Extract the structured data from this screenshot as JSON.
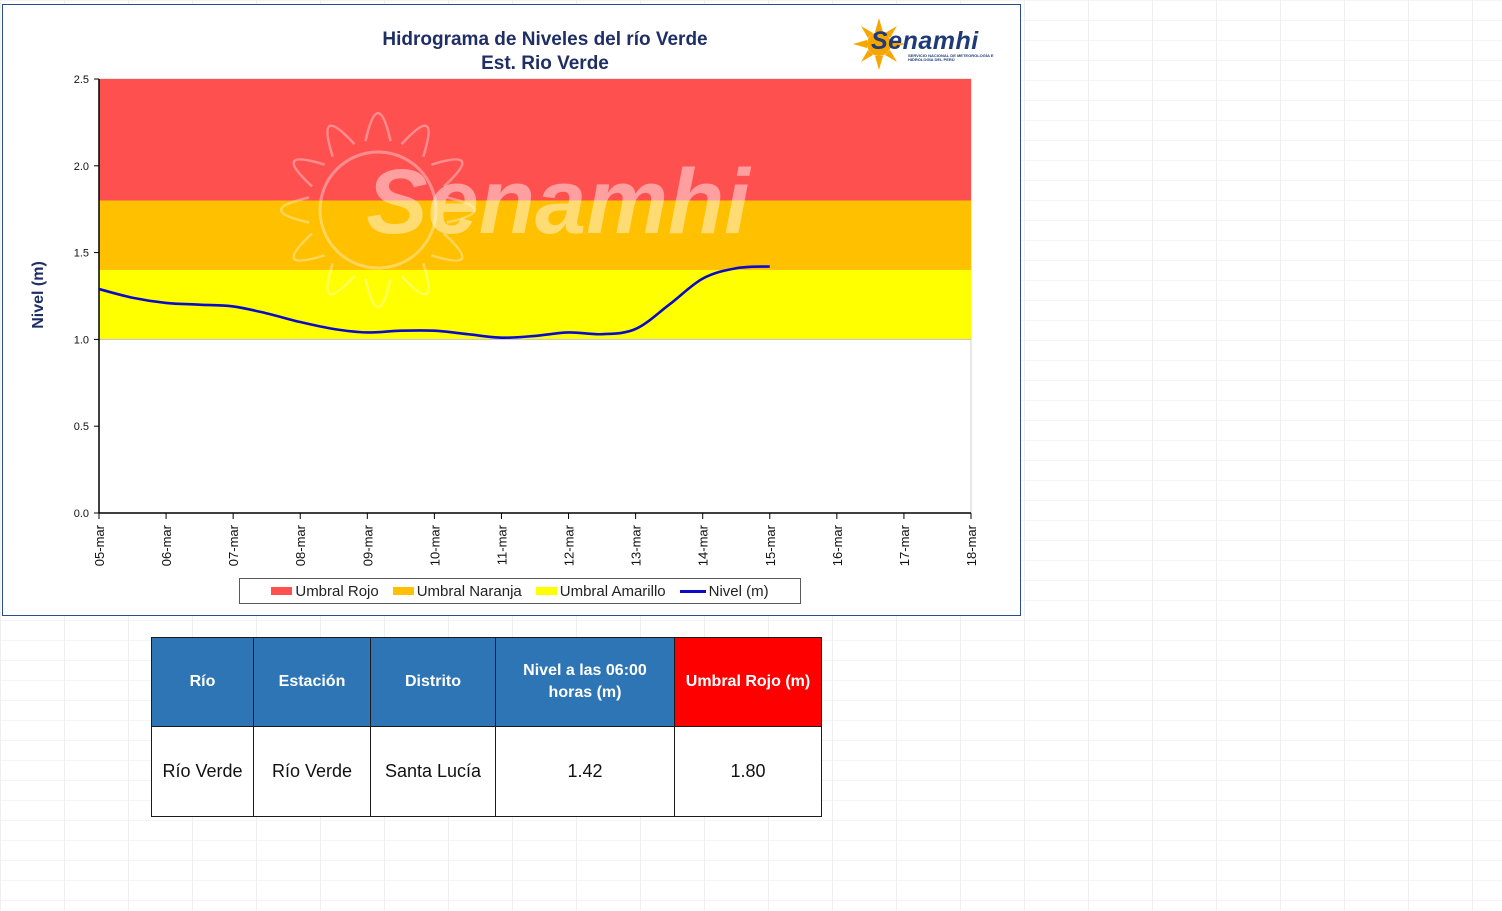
{
  "chart_data": {
    "type": "line",
    "title": "Hidrograma de Niveles del río Verde",
    "subtitle": "Est. Rio Verde",
    "ylabel": "Nivel (m)",
    "xlabel": "",
    "ylim": [
      0,
      2.5
    ],
    "yticks": [
      "0.0",
      "0.5",
      "1.0",
      "1.5",
      "2.0",
      "2.5"
    ],
    "x_labels": [
      "05-mar",
      "06-mar",
      "07-mar",
      "08-mar",
      "09-mar",
      "10-mar",
      "11-mar",
      "12-mar",
      "13-mar",
      "14-mar",
      "15-mar",
      "16-mar",
      "17-mar",
      "18-mar"
    ],
    "bands": [
      {
        "name": "Umbral Rojo",
        "from": 1.8,
        "to": 2.5,
        "color": "#ff5050"
      },
      {
        "name": "Umbral Naranja",
        "from": 1.4,
        "to": 1.8,
        "color": "#ffc000"
      },
      {
        "name": "Umbral Amarillo",
        "from": 1.0,
        "to": 1.4,
        "color": "#ffff00"
      }
    ],
    "series": [
      {
        "name": "Nivel (m)",
        "color": "#0a0ac8",
        "x": [
          0,
          0.5,
          1,
          1.5,
          2,
          2.5,
          3,
          3.5,
          4,
          4.5,
          5,
          5.5,
          6,
          6.5,
          7,
          7.5,
          8,
          8.5,
          9,
          9.5,
          10
        ],
        "values": [
          1.29,
          1.24,
          1.21,
          1.2,
          1.19,
          1.15,
          1.1,
          1.06,
          1.04,
          1.05,
          1.05,
          1.03,
          1.01,
          1.02,
          1.04,
          1.03,
          1.06,
          1.2,
          1.35,
          1.41,
          1.42
        ]
      }
    ],
    "legend": [
      {
        "label": "Umbral Rojo",
        "color": "#ff5050",
        "kind": "box"
      },
      {
        "label": "Umbral Naranja",
        "color": "#ffc000",
        "kind": "box"
      },
      {
        "label": "Umbral Amarillo",
        "color": "#ffff00",
        "kind": "box"
      },
      {
        "label": "Nivel (m)",
        "color": "#0a0ac8",
        "kind": "line"
      }
    ],
    "legend_position": "bottom",
    "watermark": "Senamhi"
  },
  "logo": {
    "name": "Senamhi",
    "subtitle": "SERVICIO NACIONAL DE METEOROLOGÍA E HIDROLOGÍA DEL PERÚ",
    "icon": "sun-logo-icon",
    "color": "#1f3a78"
  },
  "table": {
    "headers": [
      "Río",
      "Estación",
      "Distrito",
      "Nivel a las 06:00 horas (m)",
      "Umbral Rojo (m)"
    ],
    "header_color": "#2e75b6",
    "highlight_header_color": "#ff0000",
    "row": [
      "Río Verde",
      "Río Verde",
      "Santa Lucía",
      "1.42",
      "1.80"
    ]
  }
}
